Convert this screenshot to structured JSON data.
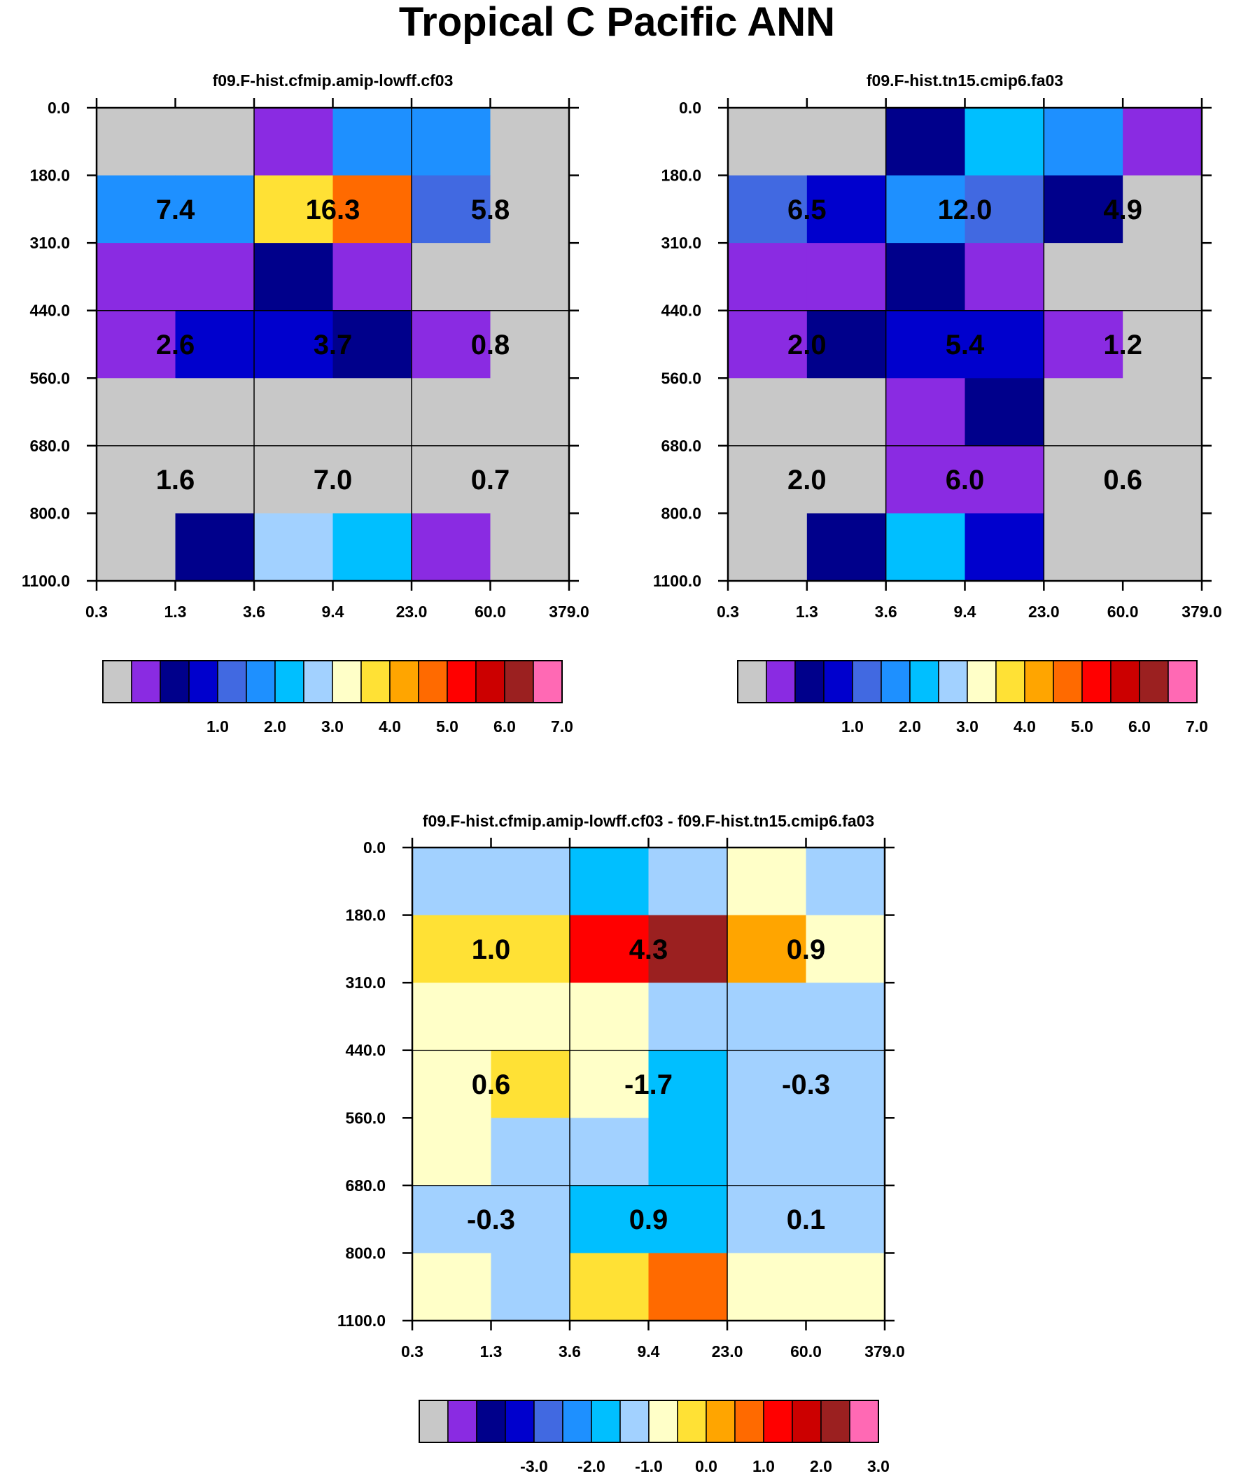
{
  "title": "Tropical C Pacific ANN",
  "palette": [
    "#C8C8C8",
    "#8A2BE2",
    "#00008B",
    "#0000CD",
    "#4169E1",
    "#1E90FF",
    "#00BFFF",
    "#A2D1FF",
    "#FFFFC8",
    "#FFE135",
    "#FFA500",
    "#FF6A00",
    "#FF0000",
    "#CC0000",
    "#9B2020",
    "#FF69B4"
  ],
  "chart_data": [
    {
      "type": "heatmap",
      "title": "f09.F-hist.cfmip.amip-lowff.cf03",
      "x_ticks": [
        "0.3",
        "1.3",
        "3.6",
        "9.4",
        "23.0",
        "60.0",
        "379.0"
      ],
      "y_ticks": [
        "0.0",
        "180.0",
        "310.0",
        "440.0",
        "560.0",
        "680.0",
        "800.0",
        "1100.0"
      ],
      "cell_color_index": [
        [
          0,
          0,
          1,
          5,
          5,
          0
        ],
        [
          5,
          5,
          9,
          11,
          4,
          0
        ],
        [
          1,
          1,
          2,
          1,
          0,
          0
        ],
        [
          1,
          3,
          3,
          2,
          1,
          0
        ],
        [
          0,
          0,
          0,
          0,
          0,
          0
        ],
        [
          0,
          0,
          0,
          0,
          0,
          0
        ],
        [
          0,
          2,
          7,
          6,
          1,
          0
        ]
      ],
      "block_values": [
        [
          "7.4",
          "16.3",
          "5.8"
        ],
        [
          "2.6",
          "3.7",
          "0.8"
        ],
        [
          "1.6",
          "7.0",
          "0.7"
        ]
      ],
      "colorbar_labels": [
        "1.0",
        "2.0",
        "3.0",
        "4.0",
        "5.0",
        "6.0",
        "7.0"
      ]
    },
    {
      "type": "heatmap",
      "title": "f09.F-hist.tn15.cmip6.fa03",
      "x_ticks": [
        "0.3",
        "1.3",
        "3.6",
        "9.4",
        "23.0",
        "60.0",
        "379.0"
      ],
      "y_ticks": [
        "0.0",
        "180.0",
        "310.0",
        "440.0",
        "560.0",
        "680.0",
        "800.0",
        "1100.0"
      ],
      "cell_color_index": [
        [
          0,
          0,
          2,
          6,
          5,
          1
        ],
        [
          4,
          3,
          5,
          4,
          2,
          0
        ],
        [
          1,
          1,
          2,
          1,
          0,
          0
        ],
        [
          1,
          2,
          3,
          3,
          1,
          0
        ],
        [
          0,
          0,
          1,
          2,
          0,
          0
        ],
        [
          0,
          0,
          1,
          1,
          0,
          0
        ],
        [
          0,
          2,
          6,
          3,
          0,
          0
        ]
      ],
      "block_values": [
        [
          "6.5",
          "12.0",
          "4.9"
        ],
        [
          "2.0",
          "5.4",
          "1.2"
        ],
        [
          "2.0",
          "6.0",
          "0.6"
        ]
      ],
      "colorbar_labels": [
        "1.0",
        "2.0",
        "3.0",
        "4.0",
        "5.0",
        "6.0",
        "7.0"
      ]
    },
    {
      "type": "heatmap",
      "title": "f09.F-hist.cfmip.amip-lowff.cf03 - f09.F-hist.tn15.cmip6.fa03",
      "x_ticks": [
        "0.3",
        "1.3",
        "3.6",
        "9.4",
        "23.0",
        "60.0",
        "379.0"
      ],
      "y_ticks": [
        "0.0",
        "180.0",
        "310.0",
        "440.0",
        "560.0",
        "680.0",
        "800.0",
        "1100.0"
      ],
      "cell_color_index": [
        [
          7,
          7,
          6,
          7,
          8,
          7
        ],
        [
          9,
          9,
          12,
          14,
          10,
          8
        ],
        [
          8,
          8,
          8,
          7,
          7,
          7
        ],
        [
          8,
          9,
          8,
          6,
          7,
          7
        ],
        [
          8,
          7,
          7,
          6,
          7,
          7
        ],
        [
          7,
          7,
          6,
          6,
          7,
          7
        ],
        [
          8,
          7,
          9,
          11,
          8,
          8
        ]
      ],
      "block_values": [
        [
          "1.0",
          "4.3",
          "0.9"
        ],
        [
          "0.6",
          "-1.7",
          "-0.3"
        ],
        [
          "-0.3",
          "0.9",
          "0.1"
        ]
      ],
      "colorbar_labels": [
        "-3.0",
        "-2.0",
        "-1.0",
        "0.0",
        "1.0",
        "2.0",
        "3.0"
      ]
    }
  ]
}
